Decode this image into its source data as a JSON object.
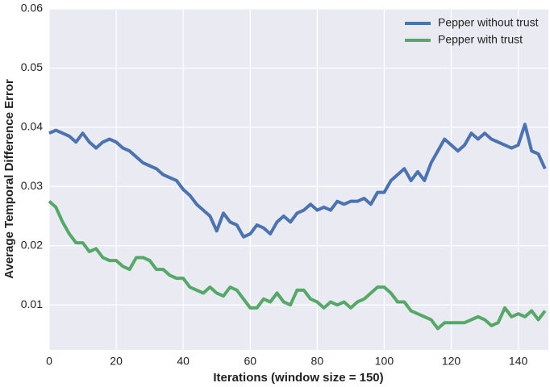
{
  "chart_data": {
    "type": "line",
    "xlabel": "Iterations (window size = 150)",
    "ylabel": "Average Temporal Difference Error",
    "x": [
      0,
      2,
      4,
      6,
      8,
      10,
      12,
      14,
      16,
      18,
      20,
      22,
      24,
      26,
      28,
      30,
      32,
      34,
      36,
      38,
      40,
      42,
      44,
      46,
      48,
      50,
      52,
      54,
      56,
      58,
      60,
      62,
      64,
      66,
      68,
      70,
      72,
      74,
      76,
      78,
      80,
      82,
      84,
      86,
      88,
      90,
      92,
      94,
      96,
      98,
      100,
      102,
      104,
      106,
      108,
      110,
      112,
      114,
      116,
      118,
      120,
      122,
      124,
      126,
      128,
      130,
      132,
      134,
      136,
      138,
      140,
      142,
      144,
      146,
      148
    ],
    "series": [
      {
        "name": "Pepper without trust",
        "color": "#4c72b0",
        "values": [
          0.039,
          0.0395,
          0.039,
          0.0385,
          0.0375,
          0.039,
          0.0375,
          0.0365,
          0.0375,
          0.038,
          0.0375,
          0.0365,
          0.036,
          0.035,
          0.034,
          0.0335,
          0.033,
          0.032,
          0.0315,
          0.031,
          0.0295,
          0.0285,
          0.027,
          0.026,
          0.025,
          0.0225,
          0.0255,
          0.024,
          0.0235,
          0.0215,
          0.022,
          0.0235,
          0.023,
          0.022,
          0.024,
          0.025,
          0.024,
          0.0255,
          0.026,
          0.027,
          0.026,
          0.0265,
          0.026,
          0.0275,
          0.027,
          0.0275,
          0.0275,
          0.028,
          0.027,
          0.029,
          0.029,
          0.031,
          0.032,
          0.033,
          0.031,
          0.0325,
          0.031,
          0.034,
          0.036,
          0.038,
          0.037,
          0.036,
          0.037,
          0.039,
          0.038,
          0.039,
          0.038,
          0.0375,
          0.037,
          0.0365,
          0.037,
          0.0405,
          0.036,
          0.0355,
          0.033
        ]
      },
      {
        "name": "Pepper with trust",
        "color": "#55a868",
        "values": [
          0.0275,
          0.0265,
          0.024,
          0.022,
          0.0205,
          0.0205,
          0.019,
          0.0195,
          0.018,
          0.0175,
          0.0175,
          0.0165,
          0.016,
          0.018,
          0.018,
          0.0175,
          0.016,
          0.016,
          0.015,
          0.0145,
          0.0145,
          0.013,
          0.0125,
          0.012,
          0.013,
          0.012,
          0.0115,
          0.013,
          0.0125,
          0.011,
          0.0095,
          0.0095,
          0.011,
          0.0105,
          0.012,
          0.0105,
          0.01,
          0.0125,
          0.0125,
          0.011,
          0.0105,
          0.0095,
          0.0105,
          0.01,
          0.0105,
          0.0095,
          0.0105,
          0.011,
          0.012,
          0.013,
          0.013,
          0.012,
          0.0105,
          0.0105,
          0.009,
          0.0085,
          0.008,
          0.0075,
          0.006,
          0.007,
          0.007,
          0.007,
          0.007,
          0.0075,
          0.008,
          0.0075,
          0.0065,
          0.007,
          0.0095,
          0.008,
          0.0085,
          0.008,
          0.009,
          0.0075,
          0.009
        ]
      }
    ],
    "xlim": [
      0,
      149
    ],
    "xticks": [
      0,
      20,
      40,
      60,
      80,
      100,
      120,
      140
    ],
    "ylim": [
      0.0024,
      0.06
    ],
    "yticks": [
      0.01,
      0.02,
      0.03,
      0.04,
      0.05,
      0.06
    ],
    "grid": true,
    "legend": "upper right"
  }
}
